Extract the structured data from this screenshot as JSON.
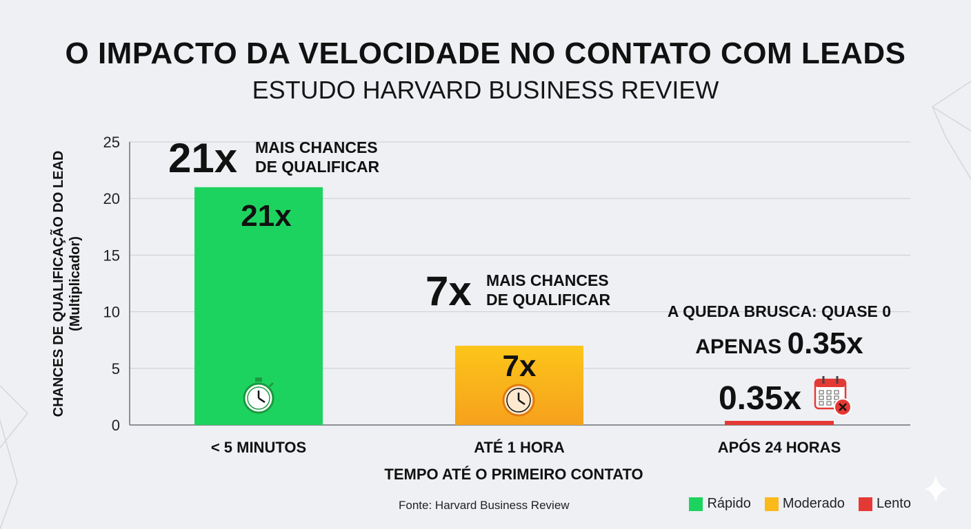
{
  "title": "O IMPACTO DA VELOCIDADE NO CONTATO COM LEADS",
  "subtitle": "ESTUDO HARVARD BUSINESS REVIEW",
  "source": "Fonte: Harvard Business Review",
  "colors": {
    "rapido": "#1dd35f",
    "moderado_top": "#fcc51a",
    "moderado_bottom": "#f6a11c",
    "lento": "#e53935",
    "grid": "#c9cdd3",
    "icon_green": "#1a9a40",
    "icon_orange": "#e07a10",
    "icon_red": "#e53935"
  },
  "chart_data": {
    "type": "bar",
    "title": "O IMPACTO DA VELOCIDADE NO CONTATO COM LEADS",
    "subtitle": "ESTUDO HARVARD BUSINESS REVIEW",
    "xlabel": "TEMPO ATÉ O PRIMEIRO CONTATO",
    "ylabel": [
      "CHANCES DE QUALIFICAÇÃO DO LEAD",
      "(Multiplicador)"
    ],
    "ylim": [
      0,
      25
    ],
    "yticks": [
      0,
      5,
      10,
      15,
      20,
      25
    ],
    "grid": true,
    "legend_position": "bottom-right",
    "categories": [
      "< 5 MINUTOS",
      "ATÉ 1 HORA",
      "APÓS 24 HORAS"
    ],
    "values": [
      21,
      7,
      0.35
    ],
    "bar_labels": [
      "21x",
      "7x",
      "0.35x"
    ],
    "bar_color_keys": [
      "rapido",
      "moderado",
      "lento"
    ],
    "bar_icons": [
      "stopwatch-icon",
      "clock-icon",
      "calendar-cancel-icon"
    ],
    "annotations": [
      {
        "big": "21x",
        "text": [
          "MAIS CHANCES",
          "DE QUALIFICAR"
        ]
      },
      {
        "big": "7x",
        "text": [
          "MAIS CHANCES",
          "DE QUALIFICAR"
        ]
      },
      {
        "line1": "A QUEDA BRUSCA: QUASE 0",
        "line2_prefix": "APENAS ",
        "line2_value": "0.35x"
      }
    ],
    "legend": [
      {
        "label": "Rápido",
        "color_key": "rapido"
      },
      {
        "label": "Moderado",
        "color_key": "moderado"
      },
      {
        "label": "Lento",
        "color_key": "lento"
      }
    ]
  }
}
